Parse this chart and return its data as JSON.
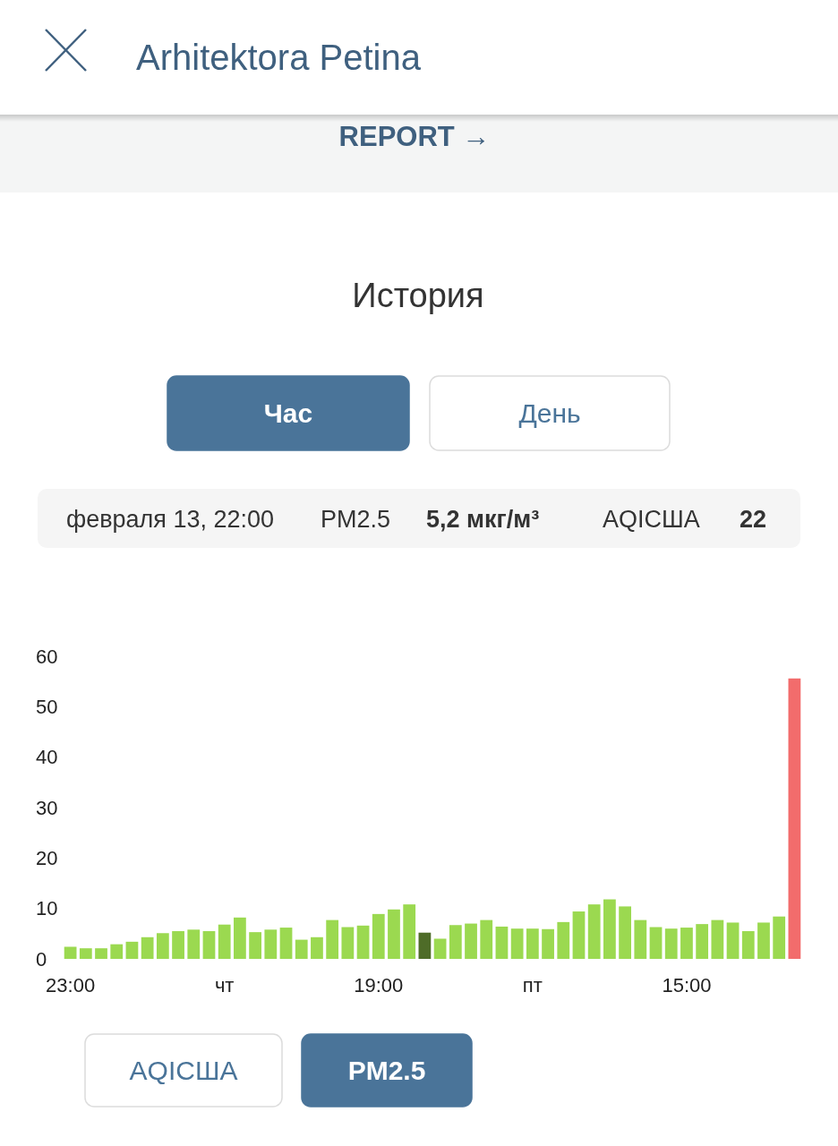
{
  "chart_data": {
    "type": "bar",
    "title": "Arhitektora Petina",
    "subtitle": "История",
    "categories": [
      "23:00",
      null,
      null,
      null,
      null,
      null,
      null,
      null,
      null,
      null,
      "чт",
      null,
      null,
      null,
      null,
      null,
      null,
      null,
      null,
      null,
      "19:00",
      null,
      null,
      null,
      null,
      null,
      null,
      null,
      null,
      null,
      "пт",
      null,
      null,
      null,
      null,
      null,
      null,
      null,
      null,
      null,
      "15:00",
      null,
      null,
      null,
      null,
      null,
      null,
      null
    ],
    "values": [
      2.4,
      2.1,
      2.1,
      2.9,
      3.4,
      4.3,
      5.1,
      5.5,
      5.8,
      5.5,
      6.8,
      8.2,
      5.3,
      5.8,
      6.2,
      3.8,
      4.3,
      7.7,
      6.3,
      6.6,
      8.9,
      9.8,
      10.8,
      5.2,
      4.0,
      6.7,
      7.0,
      7.7,
      6.4,
      6.0,
      6.0,
      5.9,
      7.3,
      9.4,
      10.8,
      11.8,
      10.4,
      7.7,
      6.3,
      6.0,
      6.2,
      6.9,
      7.7,
      7.2,
      5.5,
      7.2,
      8.4,
      55.6
    ],
    "colors": [
      "#9bd950",
      "#9bd950",
      "#9bd950",
      "#9bd950",
      "#9bd950",
      "#9bd950",
      "#9bd950",
      "#9bd950",
      "#9bd950",
      "#9bd950",
      "#9bd950",
      "#9bd950",
      "#9bd950",
      "#9bd950",
      "#9bd950",
      "#9bd950",
      "#9bd950",
      "#9bd950",
      "#9bd950",
      "#9bd950",
      "#9bd950",
      "#9bd950",
      "#9bd950",
      "#4e6c28",
      "#9bd950",
      "#9bd950",
      "#9bd950",
      "#9bd950",
      "#9bd950",
      "#9bd950",
      "#9bd950",
      "#9bd950",
      "#9bd950",
      "#9bd950",
      "#9bd950",
      "#9bd950",
      "#9bd950",
      "#9bd950",
      "#9bd950",
      "#9bd950",
      "#9bd950",
      "#9bd950",
      "#9bd950",
      "#9bd950",
      "#9bd950",
      "#9bd950",
      "#9bd950",
      "#f26c6c"
    ],
    "ylim": [
      0,
      60
    ],
    "yticks": [
      0,
      10,
      20,
      30,
      40,
      50,
      60
    ],
    "annotations": [
      "REPORT →",
      "Час",
      "День",
      "февраля 13, 22:00",
      "PM2.5",
      "5,2 мкг/м³",
      "AQIСША",
      "22",
      "AQIСША",
      "PM2.5"
    ]
  }
}
